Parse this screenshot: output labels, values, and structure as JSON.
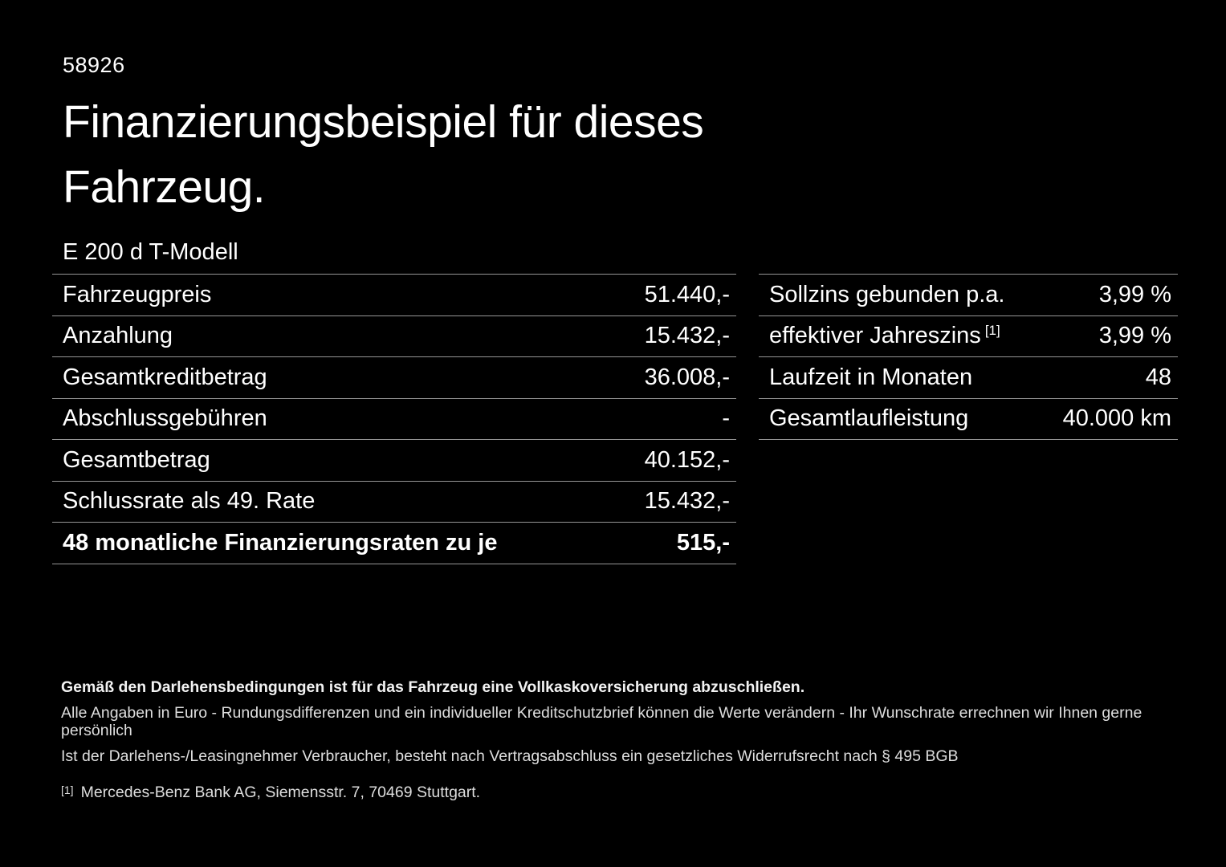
{
  "page": {
    "vehicle_id": "58926",
    "title_line1": "Finanzierungsbeispiel für dieses",
    "title_line2": "Fahrzeug.",
    "model": "E 200 d T-Modell"
  },
  "left_table": {
    "rows": [
      {
        "label": "Fahrzeugpreis",
        "value": "51.440,-"
      },
      {
        "label": "Anzahlung",
        "value": "15.432,-"
      },
      {
        "label": "Gesamtkreditbetrag",
        "value": "36.008,-"
      },
      {
        "label": "Abschlussgebühren",
        "value": "-"
      },
      {
        "label": "Gesamtbetrag",
        "value": "40.152,-"
      },
      {
        "label": "Schlussrate als 49. Rate",
        "value": "15.432,-"
      },
      {
        "label": "48 monatliche Finanzierungsraten zu je",
        "value": "515,-"
      }
    ]
  },
  "right_table": {
    "rows": [
      {
        "label": "Sollzins gebunden p.a.",
        "value": "3,99 %"
      },
      {
        "label": "effektiver Jahreszins",
        "marker": "[1]",
        "value": "3,99 %"
      },
      {
        "label": "Laufzeit in Monaten",
        "value": "48"
      },
      {
        "label": "Gesamtlaufleistung",
        "value": "40.000 km"
      }
    ]
  },
  "footer": {
    "insurance_note": "Gemäß den Darlehensbedingungen ist für das Fahrzeug eine Vollkaskoversicherung abzuschließen.",
    "disclaimer_values": "Alle Angaben in Euro - Rundungsdifferenzen und ein individueller Kreditschutzbrief können die Werte verändern - Ihr Wunschrate errechnen wir Ihnen gerne persönlich",
    "disclaimer_withdrawal": "Ist der Darlehens-/Leasingnehmer Verbraucher, besteht nach Vertragsabschluss ein gesetzliches Widerrufsrecht nach § 495 BGB",
    "footnote_marker": "[1]",
    "footnote_text": "Mercedes-Benz Bank AG, Siemensstr. 7, 70469 Stuttgart."
  },
  "colors": {
    "background": "#000000",
    "text": "#ffffff",
    "divider": "#969696"
  }
}
